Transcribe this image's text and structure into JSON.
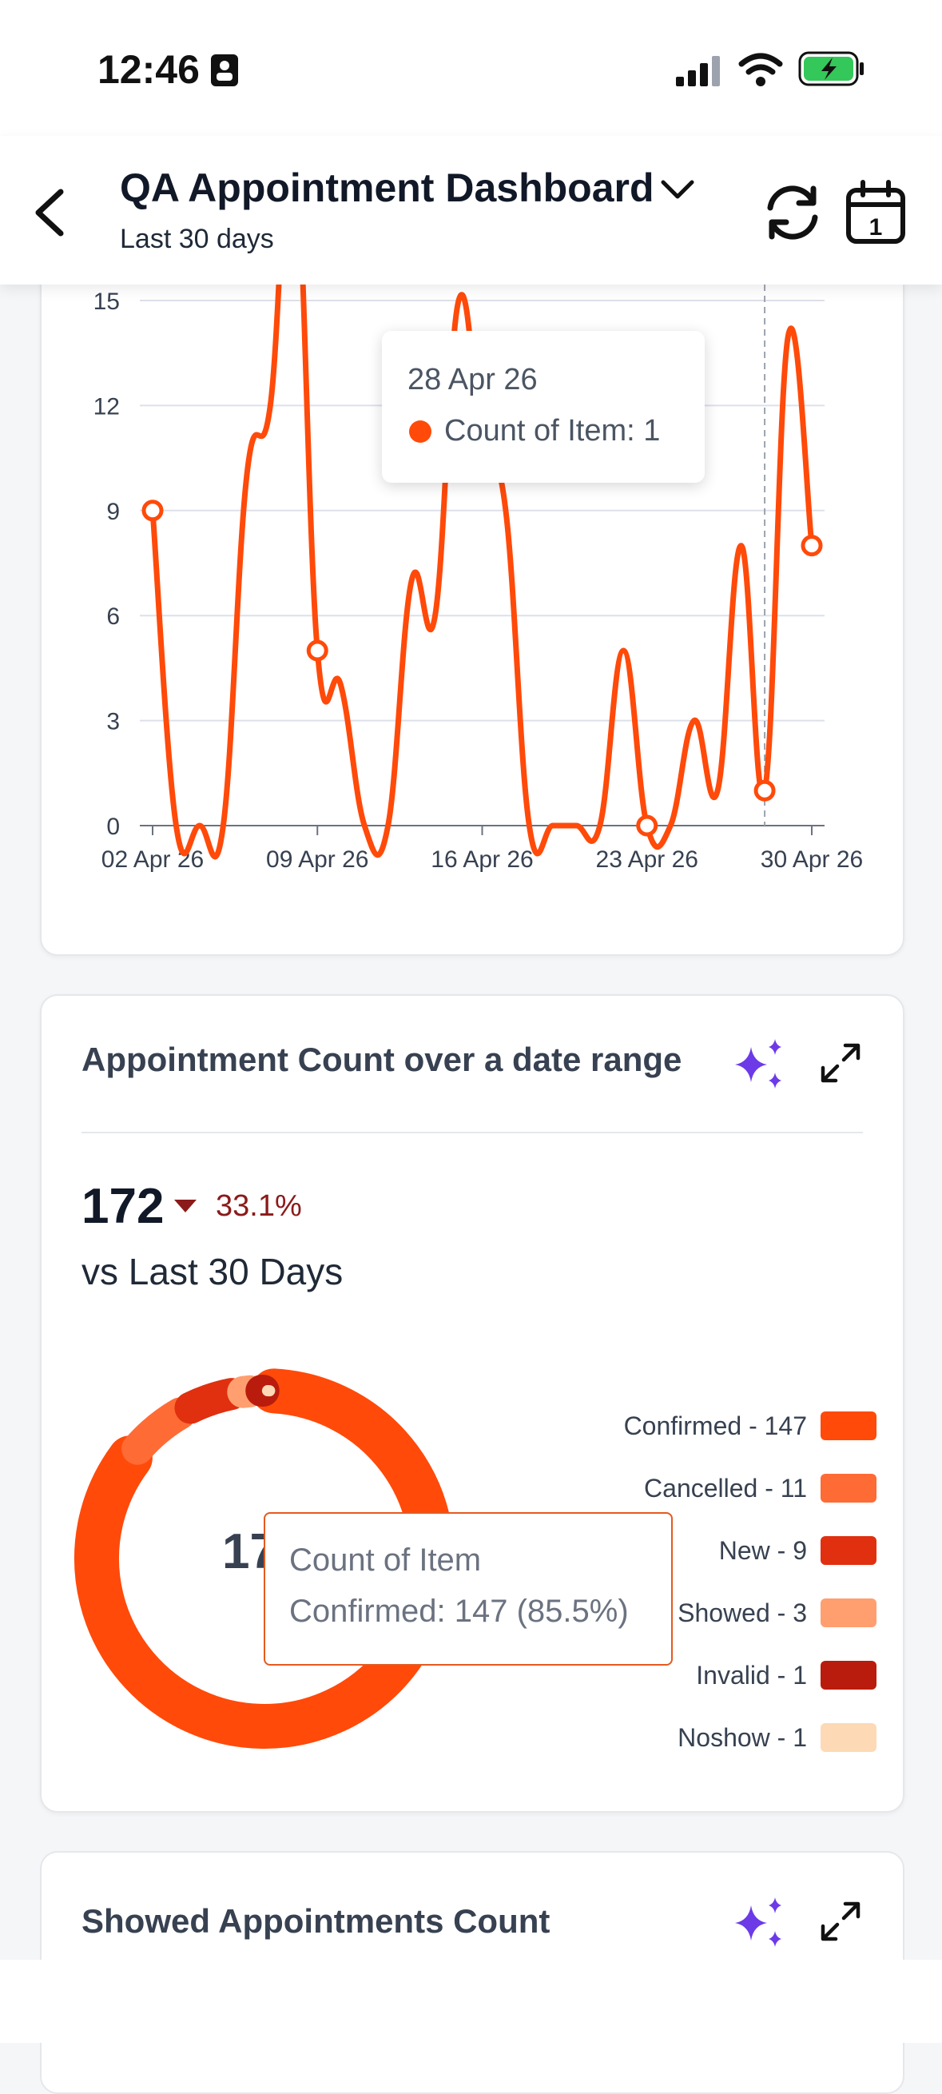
{
  "status_bar": {
    "time": "12:46"
  },
  "header": {
    "title": "QA Appointment Dashboard",
    "subtitle": "Last 30 days"
  },
  "line_chart": {
    "tooltip": {
      "date": "28 Apr 26",
      "series_label": "Count of Item: 1"
    },
    "series_color": "#FF4A0A"
  },
  "card2": {
    "title": "Appointment Count over a date range",
    "total": "172",
    "change_pct": "33.1%",
    "comparison": "vs Last 30 Days",
    "donut_center": "172",
    "tooltip": {
      "title": "Count of Item",
      "value": "Confirmed: 147 (85.5%)"
    },
    "legend": [
      {
        "label": "Confirmed - 147",
        "color": "#FF4A0A"
      },
      {
        "label": "Cancelled - 11",
        "color": "#FF6B35"
      },
      {
        "label": "New - 9",
        "color": "#E0300F"
      },
      {
        "label": "Showed - 3",
        "color": "#FF9F70"
      },
      {
        "label": "Invalid - 1",
        "color": "#B91C0C"
      },
      {
        "label": "Noshow - 1",
        "color": "#FDD9B5"
      }
    ]
  },
  "card3": {
    "title": "Showed Appointments Count"
  },
  "chart_data": [
    {
      "type": "line",
      "x": [
        "02 Apr 26",
        "03 Apr 26",
        "04 Apr 26",
        "05 Apr 26",
        "06 Apr 26",
        "07 Apr 26",
        "08 Apr 26",
        "09 Apr 26",
        "10 Apr 26",
        "11 Apr 26",
        "12 Apr 26",
        "13 Apr 26",
        "14 Apr 26",
        "15 Apr 26",
        "16 Apr 26",
        "17 Apr 26",
        "18 Apr 26",
        "19 Apr 26",
        "20 Apr 26",
        "21 Apr 26",
        "22 Apr 26",
        "23 Apr 26",
        "24 Apr 26",
        "25 Apr 26",
        "26 Apr 26",
        "27 Apr 26",
        "28 Apr 26",
        "29 Apr 26",
        "30 Apr 26"
      ],
      "series": [
        {
          "values": [
            9,
            0,
            0,
            0,
            10,
            12,
            20,
            5,
            4,
            0,
            0,
            7,
            6,
            15,
            11,
            9,
            0,
            0,
            0,
            0,
            5,
            0,
            0,
            3,
            1,
            8,
            1,
            14,
            8
          ]
        }
      ],
      "xticks": [
        "02 Apr 26",
        "09 Apr 26",
        "16 Apr 26",
        "23 Apr 26",
        "30 Apr 26"
      ],
      "yticks": [
        "0",
        "3",
        "6",
        "9",
        "12",
        "15"
      ],
      "ylim": [
        0,
        15
      ],
      "grid": true,
      "title": "",
      "xlabel": "",
      "ylabel": ""
    },
    {
      "type": "pie",
      "categories": [
        "Confirmed",
        "Cancelled",
        "New",
        "Showed",
        "Invalid",
        "Noshow"
      ],
      "values": [
        147,
        11,
        9,
        3,
        1,
        1
      ],
      "title": "Appointment Count over a date range",
      "legend": "right"
    }
  ]
}
